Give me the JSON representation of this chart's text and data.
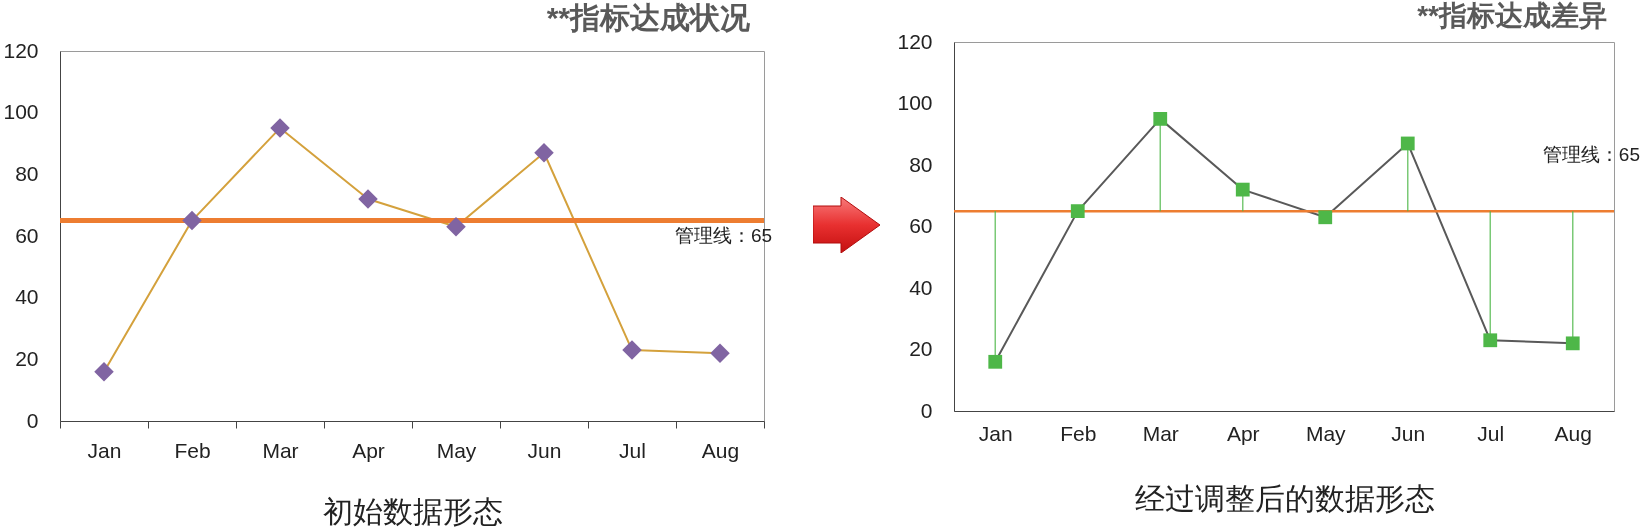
{
  "chart_data": [
    {
      "type": "line",
      "title": "**指标达成状况",
      "xlabel": "初始数据形态",
      "categories": [
        "Jan",
        "Feb",
        "Mar",
        "Apr",
        "May",
        "Jun",
        "Jul",
        "Aug"
      ],
      "marker": "diamond",
      "line_style": "solid",
      "series": [
        {
          "color": "#d4a13c",
          "colors": [
            "#8064a2",
            "#8064a2",
            "#8064a2",
            "#8064a2",
            "#8064a2",
            "#8064a2",
            "#8064a2",
            "#8064a2"
          ],
          "values": [
            16,
            65,
            95,
            72,
            63,
            87,
            23,
            22
          ]
        }
      ],
      "ylim": [
        0,
        120
      ],
      "yticks": [
        0,
        20,
        40,
        60,
        80,
        100,
        120
      ],
      "ref_lines": [
        {
          "axis": "y",
          "value": 65,
          "label": "管理线：65",
          "color": "#ed7d31"
        }
      ]
    },
    {
      "type": "line",
      "title": "**指标达成差异",
      "xlabel": "经过调整后的数据形态",
      "categories": [
        "Jan",
        "Feb",
        "Mar",
        "Apr",
        "May",
        "Jun",
        "Jul",
        "Aug"
      ],
      "marker": "square",
      "line_style": "solid",
      "series": [
        {
          "color": "#595959",
          "colors": [
            "#4eb748",
            "#4eb748",
            "#4eb748",
            "#4eb748",
            "#4eb748",
            "#4eb748",
            "#4eb748",
            "#4eb748"
          ],
          "values": [
            16,
            65,
            95,
            72,
            63,
            87,
            23,
            22
          ],
          "errors": [
            [
              16,
              65
            ],
            null,
            [
              65,
              95
            ],
            [
              65,
              72
            ],
            null,
            [
              65,
              87
            ],
            [
              23,
              65
            ],
            [
              22,
              65
            ]
          ]
        }
      ],
      "ylim": [
        0,
        120
      ],
      "yticks": [
        0,
        20,
        40,
        60,
        80,
        100,
        120
      ],
      "ref_lines": [
        {
          "axis": "y",
          "value": 65,
          "label": "管理线：65",
          "color": "#ed7d31"
        }
      ]
    }
  ]
}
